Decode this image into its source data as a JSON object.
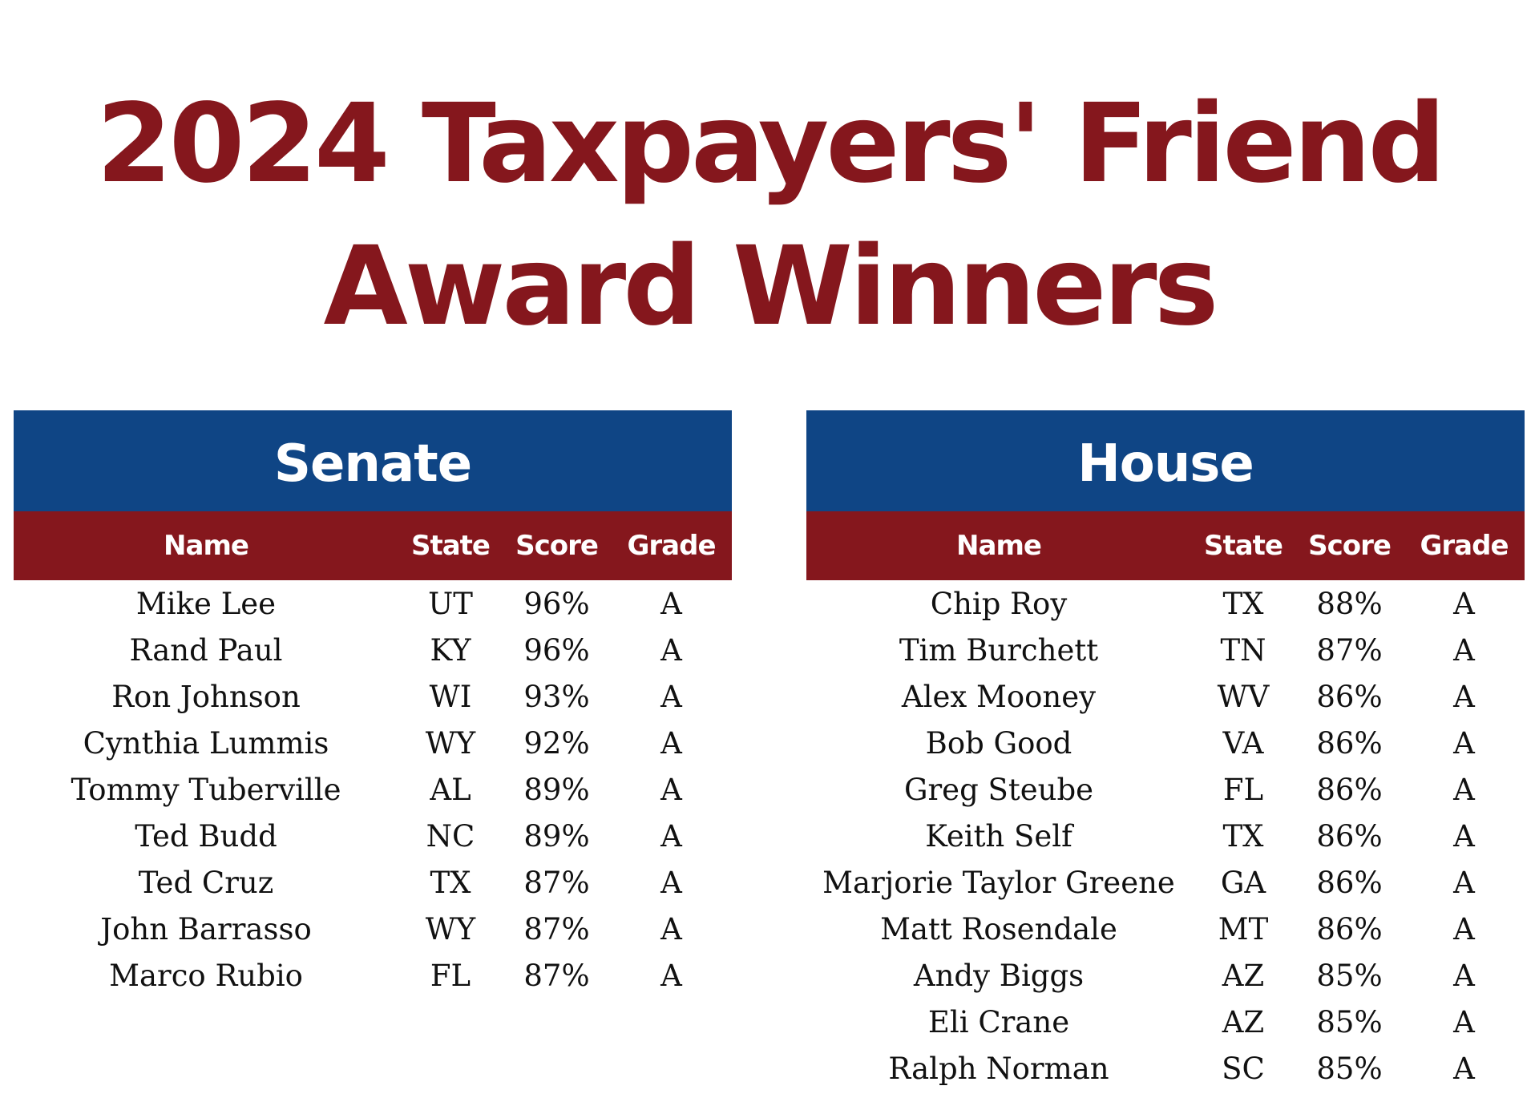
{
  "title": {
    "line1": "2024 Taxpayers' Friend",
    "line2": "Award Winners"
  },
  "colors": {
    "title": "#85171d",
    "section_header": "#0f4585",
    "column_header": "#85171d"
  },
  "columns": [
    "Name",
    "State",
    "Score",
    "Grade"
  ],
  "senate": {
    "heading": "Senate",
    "rows": [
      [
        "Mike Lee",
        "UT",
        "96%",
        "A"
      ],
      [
        "Rand Paul",
        "KY",
        "96%",
        "A"
      ],
      [
        "Ron Johnson",
        "WI",
        "93%",
        "A"
      ],
      [
        "Cynthia Lummis",
        "WY",
        "92%",
        "A"
      ],
      [
        "Tommy Tuberville",
        "AL",
        "89%",
        "A"
      ],
      [
        "Ted Budd",
        "NC",
        "89%",
        "A"
      ],
      [
        "Ted Cruz",
        "TX",
        "87%",
        "A"
      ],
      [
        "John Barrasso",
        "WY",
        "87%",
        "A"
      ],
      [
        "Marco Rubio",
        "FL",
        "87%",
        "A"
      ]
    ]
  },
  "house": {
    "heading": "House",
    "rows": [
      [
        "Chip Roy",
        "TX",
        "88%",
        "A"
      ],
      [
        "Tim Burchett",
        "TN",
        "87%",
        "A"
      ],
      [
        "Alex Mooney",
        "WV",
        "86%",
        "A"
      ],
      [
        "Bob Good",
        "VA",
        "86%",
        "A"
      ],
      [
        "Greg Steube",
        "FL",
        "86%",
        "A"
      ],
      [
        "Keith Self",
        "TX",
        "86%",
        "A"
      ],
      [
        "Marjorie Taylor Greene",
        "GA",
        "86%",
        "A"
      ],
      [
        "Matt Rosendale",
        "MT",
        "86%",
        "A"
      ],
      [
        "Andy Biggs",
        "AZ",
        "85%",
        "A"
      ],
      [
        "Eli Crane",
        "AZ",
        "85%",
        "A"
      ],
      [
        "Ralph Norman",
        "SC",
        "85%",
        "A"
      ]
    ]
  }
}
